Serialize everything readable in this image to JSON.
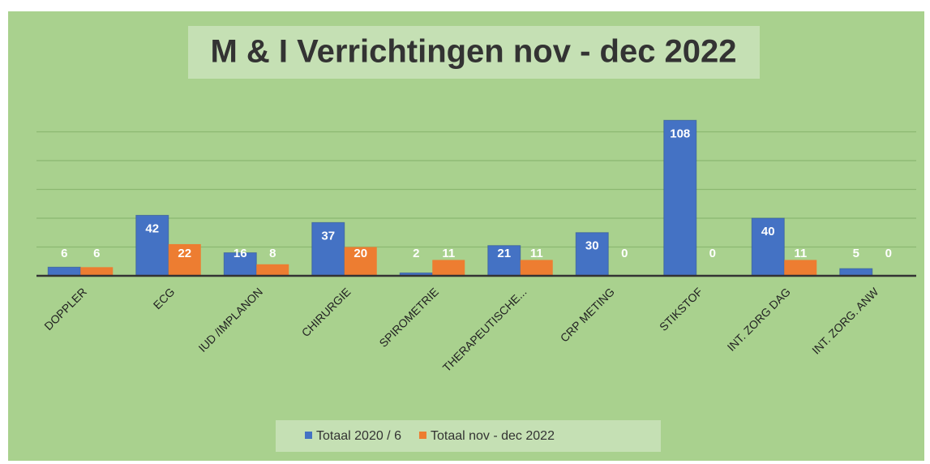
{
  "chart_data": {
    "type": "bar",
    "title": "M & I Verrichtingen nov - dec 2022",
    "categories": [
      "DOPPLER",
      "ECG",
      "IUD /IMPLANON",
      "CHIRURGIE",
      "SPIROMETRIE",
      "THERAPEUTISCHE...",
      "CRP METING",
      "STIKSTOF",
      "INT. ZORG DAG",
      "INT. ZORG. ANW"
    ],
    "series": [
      {
        "name": "Totaal 2020 / 6",
        "color": "#4472c4",
        "values": [
          6,
          42,
          16,
          37,
          2,
          21,
          30,
          108,
          40,
          5
        ]
      },
      {
        "name": "Totaal nov - dec 2022",
        "color": "#ed7d31",
        "values": [
          6,
          22,
          8,
          20,
          11,
          11,
          0,
          0,
          11,
          0
        ]
      }
    ],
    "ylim": [
      0,
      120
    ],
    "yticks": [
      0,
      20,
      40,
      60,
      80,
      100
    ],
    "grid": true,
    "legend": "bottom"
  }
}
